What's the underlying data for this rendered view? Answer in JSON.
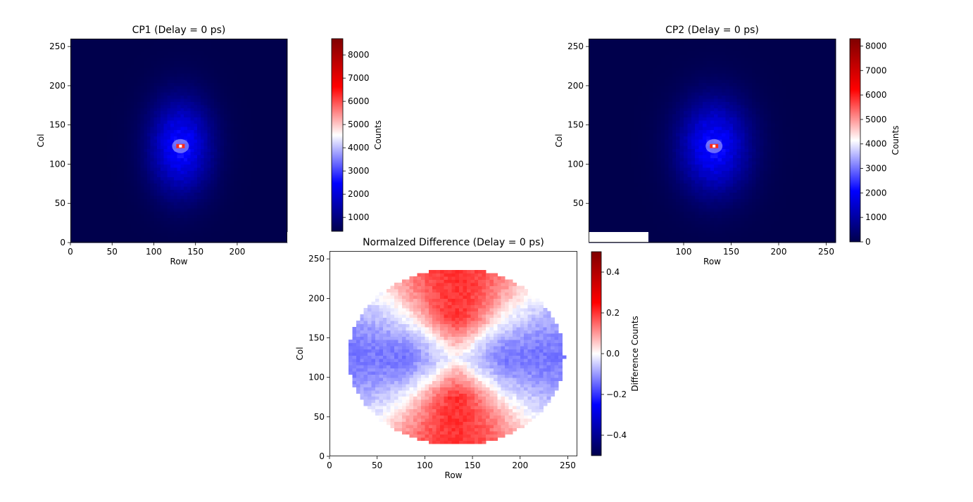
{
  "chart_data": [
    {
      "type": "heatmap",
      "title": "CP1 (Delay = 0 ps)",
      "xlabel": "Row",
      "ylabel": "Col",
      "xlim": [
        0,
        260
      ],
      "ylim": [
        0,
        260
      ],
      "xticks": [
        0,
        50,
        100,
        150,
        200
      ],
      "yticks": [
        0,
        50,
        100,
        150,
        200,
        250
      ],
      "colormap": "seismic",
      "colorbar": {
        "label": "Counts",
        "range": [
          400,
          8700
        ],
        "ticks": [
          1000,
          2000,
          3000,
          4000,
          5000,
          6000,
          7000,
          8000
        ]
      },
      "background_value": 400,
      "peak": {
        "x": 132,
        "y": 123,
        "value": 8700
      },
      "grid": false
    },
    {
      "type": "heatmap",
      "title": "CP2 (Delay = 0 ps)",
      "xlabel": "Row",
      "ylabel": "Col",
      "xlim": [
        0,
        260
      ],
      "ylim": [
        0,
        260
      ],
      "xticks": [
        100,
        150,
        200,
        250
      ],
      "yticks": [
        50,
        100,
        150,
        200,
        250
      ],
      "colormap": "seismic",
      "colorbar": {
        "label": "Counts",
        "range": [
          0,
          8300
        ],
        "ticks": [
          0,
          1000,
          2000,
          3000,
          4000,
          5000,
          6000,
          7000,
          8000
        ]
      },
      "background_value": 0,
      "peak": {
        "x": 132,
        "y": 123,
        "value": 8300
      },
      "grid": false
    },
    {
      "type": "heatmap",
      "title": "Normalzed Difference (Delay = 0 ps)",
      "xlabel": "Row",
      "ylabel": "Col",
      "xlim": [
        0,
        260
      ],
      "ylim": [
        0,
        260
      ],
      "xticks": [
        0,
        50,
        100,
        150,
        200,
        250
      ],
      "yticks": [
        0,
        50,
        100,
        150,
        200,
        250
      ],
      "colormap": "seismic",
      "colorbar": {
        "label": "Difference Counts",
        "range": [
          -0.5,
          0.5
        ],
        "ticks": [
          -0.4,
          -0.2,
          0.0,
          0.2,
          0.4
        ],
        "tick_labels": [
          "−0.4",
          "−0.2",
          "0.0",
          "0.2",
          "0.4"
        ]
      },
      "mask": {
        "shape": "ellipse",
        "center": [
          133,
          126
        ],
        "radius_x": 113,
        "radius_y": 112
      },
      "pattern": {
        "top_bottom_lobe_value": 0.2,
        "left_right_lobe_value": -0.13
      },
      "grid": false
    }
  ]
}
